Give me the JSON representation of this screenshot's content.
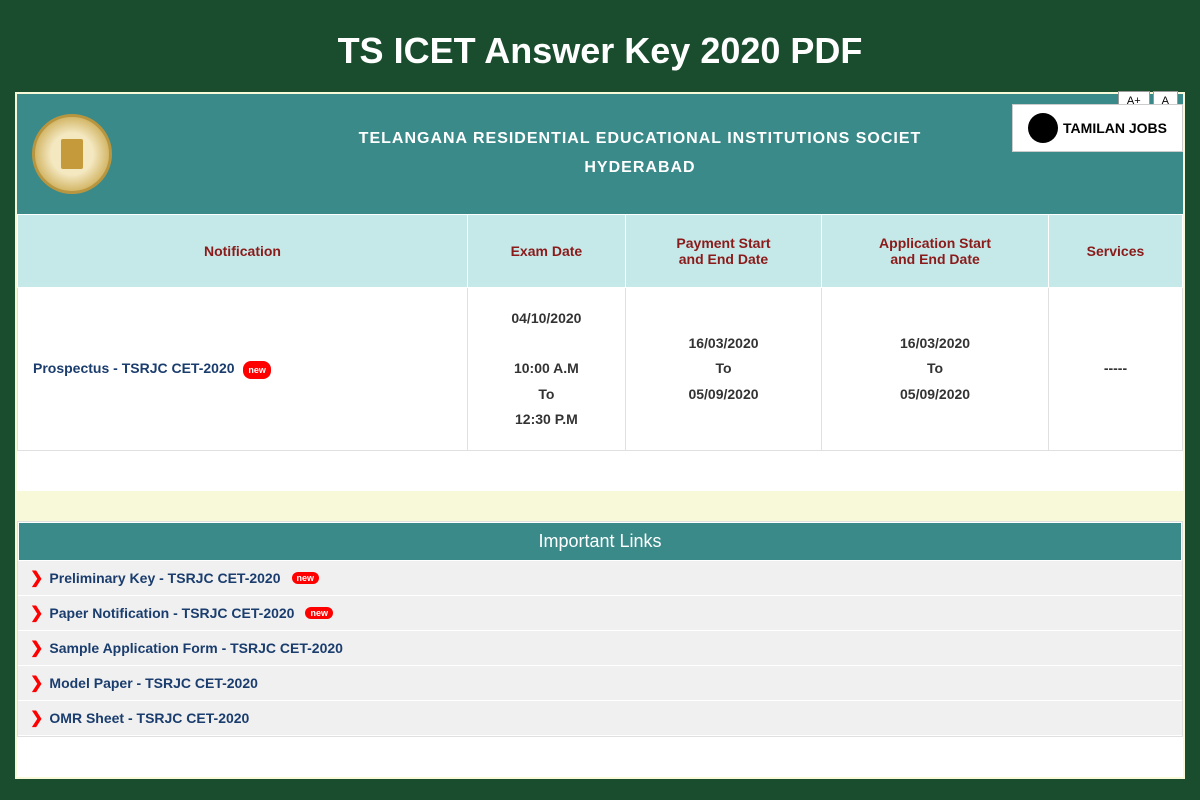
{
  "page": {
    "title": "TS ICET Answer Key 2020 PDF",
    "background_color": "#1a4d2e"
  },
  "header": {
    "org_line1": "TELANGANA RESIDENTIAL EDUCATIONAL INSTITUTIONS SOCIET",
    "org_line2": "HYDERABAD",
    "background_color": "#3a8a8a",
    "text_color": "#ffffff"
  },
  "watermark": {
    "text": "TAMILAN JOBS"
  },
  "font_controls": {
    "increase": "A+",
    "normal": "A"
  },
  "table": {
    "header_bg": "#c5e8e8",
    "header_color": "#8b1a1a",
    "columns": [
      "Notification",
      "Exam Date",
      "Payment Start and End Date",
      "Application Start and End Date",
      "Services"
    ],
    "row": {
      "notification": "Prospectus - TSRJC CET-2020",
      "notification_new": true,
      "exam_date": "04/10/2020\n\n10:00 A.M\nTo\n12:30 P.M",
      "payment_dates": "16/03/2020\nTo\n05/09/2020",
      "application_dates": "16/03/2020\nTo\n05/09/2020",
      "services": "-----"
    }
  },
  "important_links": {
    "title": "Important Links",
    "items": [
      {
        "label": "Preliminary Key - TSRJC CET-2020",
        "new": true
      },
      {
        "label": "Paper Notification - TSRJC CET-2020",
        "new": true
      },
      {
        "label": "Sample Application Form - TSRJC CET-2020",
        "new": false
      },
      {
        "label": "Model Paper - TSRJC CET-2020",
        "new": false
      },
      {
        "label": "OMR Sheet - TSRJC CET-2020",
        "new": false
      }
    ]
  },
  "new_badge": {
    "text": "new",
    "bg_color": "#ff0000"
  }
}
